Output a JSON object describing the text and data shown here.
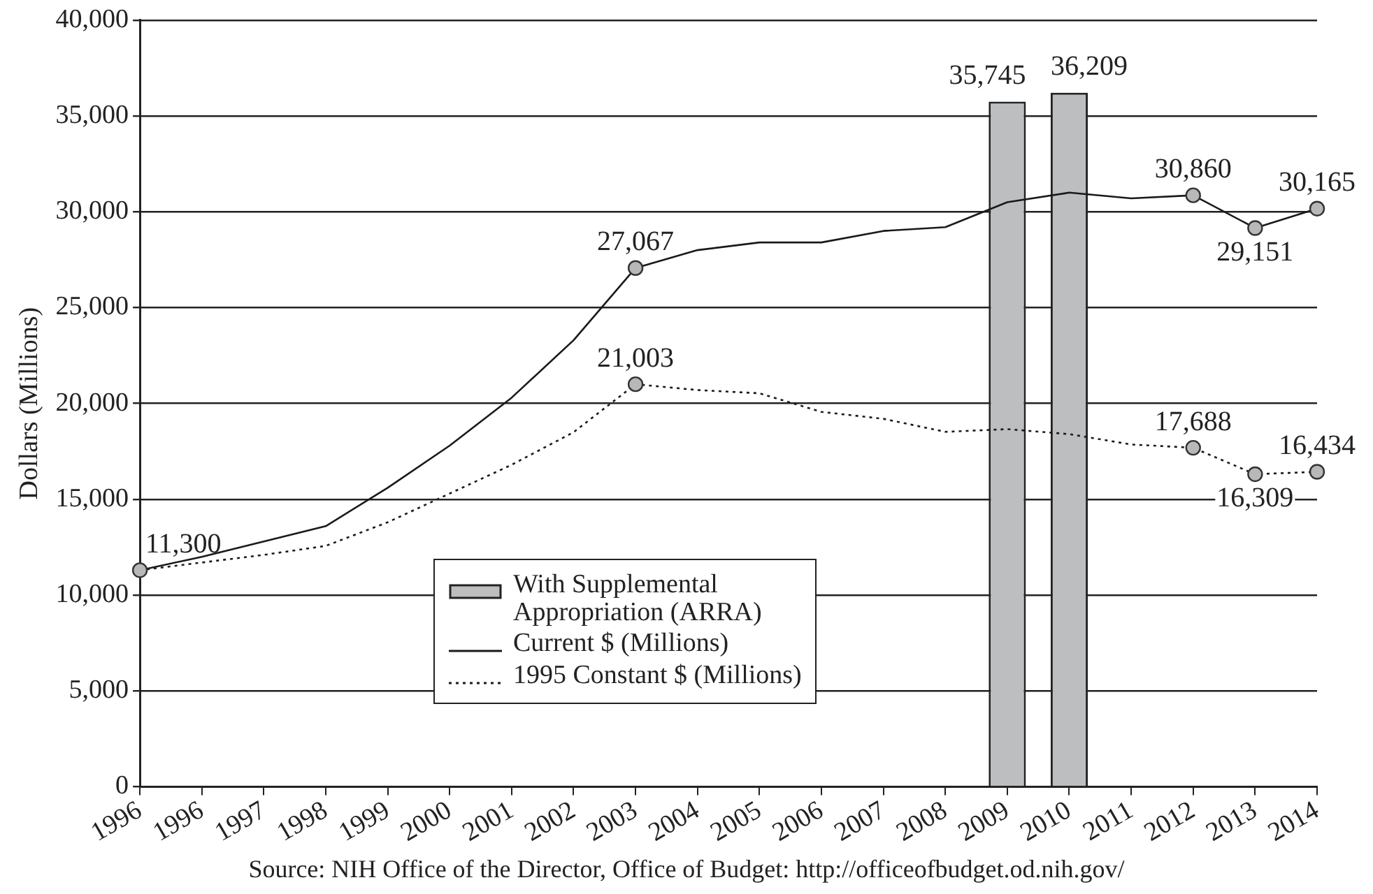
{
  "chart_data": {
    "type": "line",
    "ylabel": "Dollars (Millions)",
    "categories": [
      "1996",
      "1996",
      "1997",
      "1998",
      "1999",
      "2000",
      "2001",
      "2002",
      "2003",
      "2004",
      "2005",
      "2006",
      "2007",
      "2008",
      "2009",
      "2010",
      "2011",
      "2012",
      "2013",
      "2014"
    ],
    "series": [
      {
        "name": "With Supplemental Appropriation (ARRA)",
        "type": "bar",
        "color": "#bcbec0",
        "values": [
          null,
          null,
          null,
          null,
          null,
          null,
          null,
          null,
          null,
          null,
          null,
          null,
          null,
          null,
          35745,
          36209,
          null,
          null,
          null,
          null
        ],
        "value_labels": [
          null,
          null,
          null,
          null,
          null,
          null,
          null,
          null,
          null,
          null,
          null,
          null,
          null,
          null,
          "35,745",
          "36,209",
          null,
          null,
          null,
          null
        ]
      },
      {
        "name": "Current $ (Millions)",
        "color": "#1a1a1a",
        "line_style": "solid",
        "values": [
          11300,
          12000,
          12800,
          13600,
          15600,
          17800,
          20300,
          23300,
          27067,
          28000,
          28400,
          28400,
          29000,
          29200,
          30500,
          31000,
          30700,
          30860,
          29151,
          30165
        ],
        "value_labels": [
          "11,300",
          null,
          null,
          null,
          null,
          null,
          null,
          null,
          "27,067",
          null,
          null,
          null,
          null,
          null,
          null,
          null,
          null,
          "30,860",
          "29,151",
          "30,165"
        ]
      },
      {
        "name": "1995 Constant $ (Millions)",
        "color": "#1a1a1a",
        "line_style": "dotted",
        "values": [
          11300,
          11700,
          12100,
          12570,
          13800,
          15300,
          16800,
          18500,
          21003,
          20700,
          20530,
          19560,
          19200,
          18520,
          18660,
          18400,
          17860,
          17688,
          16309,
          16434
        ],
        "value_labels": [
          null,
          null,
          null,
          null,
          null,
          null,
          null,
          null,
          "21,003",
          null,
          null,
          null,
          null,
          null,
          null,
          null,
          null,
          "17,688",
          "16,309",
          "16,434"
        ]
      }
    ],
    "ylim": [
      0,
      40000
    ],
    "yticks": [
      {
        "value": 0,
        "label": "0"
      },
      {
        "value": 5000,
        "label": "5,000"
      },
      {
        "value": 10000,
        "label": "10,000"
      },
      {
        "value": 15000,
        "label": "15,000"
      },
      {
        "value": 20000,
        "label": "20,000"
      },
      {
        "value": 25000,
        "label": "25,000"
      },
      {
        "value": 30000,
        "label": "30,000"
      },
      {
        "value": 35000,
        "label": "35,000"
      },
      {
        "value": 40000,
        "label": "40,000"
      }
    ],
    "grid": "y",
    "legend": "bottom",
    "annotations": [
      "Source: NIH Office of the Director, Office of Budget: http://officeofbudget.od.nih.gov/"
    ]
  }
}
